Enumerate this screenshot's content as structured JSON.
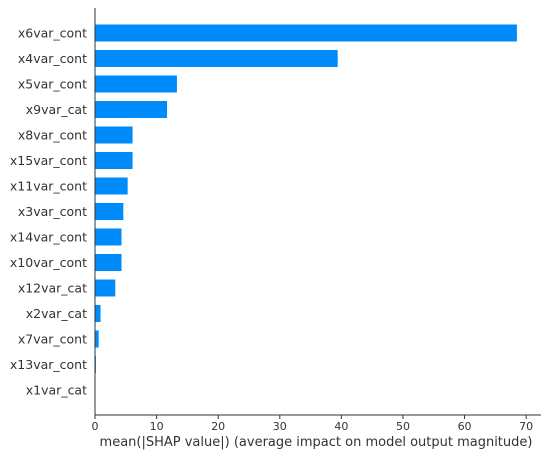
{
  "chart_data": {
    "type": "bar",
    "orientation": "horizontal",
    "categories": [
      "x6var_cont",
      "x4var_cont",
      "x5var_cont",
      "x9var_cat",
      "x8var_cont",
      "x15var_cont",
      "x11var_cont",
      "x3var_cont",
      "x14var_cont",
      "x10var_cont",
      "x12var_cat",
      "x2var_cat",
      "x7var_cont",
      "x13var_cont",
      "x1var_cat"
    ],
    "values": [
      68.5,
      39.4,
      13.3,
      11.7,
      6.1,
      6.1,
      5.3,
      4.6,
      4.3,
      4.3,
      3.3,
      0.9,
      0.6,
      0.15,
      0.0
    ],
    "xlabel": "mean(|SHAP value|) (average impact on model output magnitude)",
    "ylabel": "",
    "title": "",
    "xlim": [
      0,
      72.5
    ],
    "xticks": [
      0,
      10,
      20,
      30,
      40,
      50,
      60,
      70
    ],
    "grid": false,
    "legend": "none",
    "bar_color": "#008bfb",
    "axis_color": "#333333"
  }
}
